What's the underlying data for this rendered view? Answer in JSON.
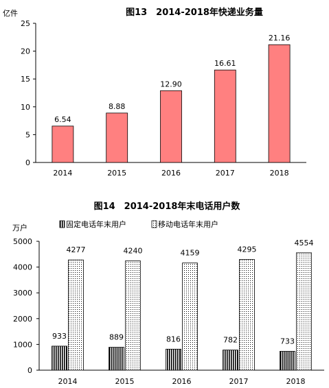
{
  "chart_data": [
    {
      "type": "bar",
      "title": "图13　2014-2018年快递业务量",
      "ylabel": "亿件",
      "xlabel": "",
      "categories": [
        "2014",
        "2015",
        "2016",
        "2017",
        "2018"
      ],
      "series": [
        {
          "values": [
            6.54,
            8.88,
            12.9,
            16.61,
            21.16
          ]
        }
      ],
      "data_labels": [
        "6.54",
        "8.88",
        "12.90",
        "16.61",
        "21.16"
      ],
      "ylim": [
        0,
        25
      ],
      "yticks": [
        "0",
        "5",
        "10",
        "15",
        "20",
        "25"
      ],
      "grid": false,
      "colors": {
        "bar": "#ff8080",
        "bar_stroke": "#000000"
      }
    },
    {
      "type": "bar",
      "title": "图14　2014-2018年末电话用户数",
      "ylabel": "万户",
      "xlabel": "",
      "categories": [
        "2014",
        "2015",
        "2016",
        "2017",
        "2018"
      ],
      "series": [
        {
          "name": "固定电话年末用户",
          "values": [
            933,
            889,
            816,
            782,
            733
          ],
          "pattern": "vertical-lines"
        },
        {
          "name": "移动电话年末用户",
          "values": [
            4277,
            4240,
            4159,
            4295,
            4554
          ],
          "pattern": "dots"
        }
      ],
      "data_labels": [
        [
          "933",
          "889",
          "816",
          "782",
          "733"
        ],
        [
          "4277",
          "4240",
          "4159",
          "4295",
          "4554"
        ]
      ],
      "ylim": [
        0,
        5000
      ],
      "yticks": [
        "0",
        "1000",
        "2000",
        "3000",
        "4000",
        "5000"
      ],
      "grid": false,
      "legend": "top"
    }
  ]
}
